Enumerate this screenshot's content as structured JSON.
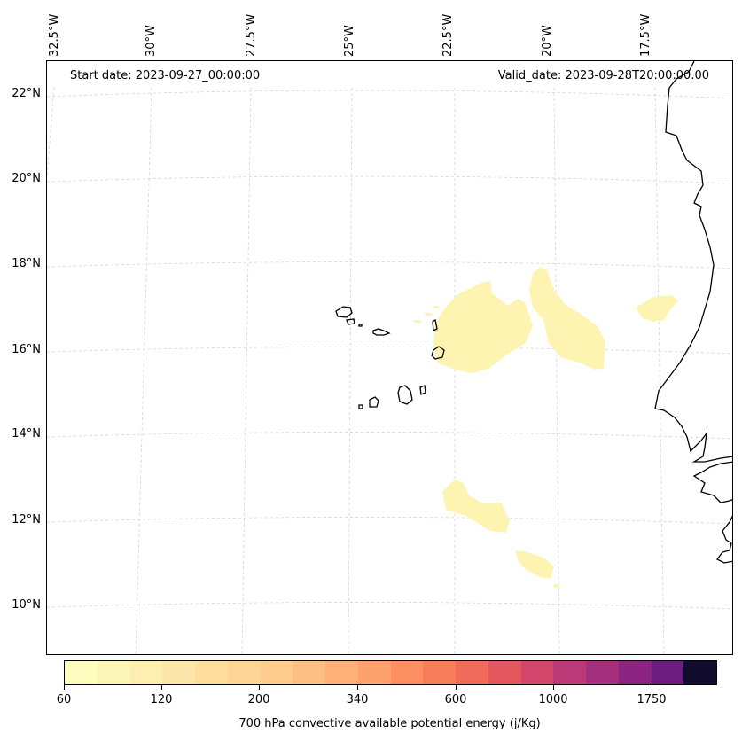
{
  "map": {
    "start_date": "Start date: 2023-09-27_00:00:00",
    "valid_date": "Valid_date: 2023-09-28T20:00:00.00",
    "lon_labels": [
      "32.5°W",
      "30°W",
      "27.5°W",
      "25°W",
      "22.5°W",
      "20°W",
      "17.5°W"
    ],
    "lat_labels": [
      "22°N",
      "20°N",
      "18°N",
      "16°N",
      "14°N",
      "12°N",
      "10°N"
    ],
    "gridlines": true,
    "coastline_color": "#000000",
    "gridline_color": "#cccccc"
  },
  "colorbar": {
    "label": "700 hPa convective available potential energy (j/Kg)",
    "ticks": [
      "60",
      "120",
      "200",
      "340",
      "600",
      "1000",
      "1750"
    ],
    "colors": [
      "#fcfdbf",
      "#fcf5b8",
      "#fdeeb1",
      "#fde6a9",
      "#fdde9f",
      "#fed597",
      "#fecc8f",
      "#febf84",
      "#feb078",
      "#fea26d",
      "#fc9062",
      "#f87d5a",
      "#f06b5a",
      "#e4575f",
      "#d2466b",
      "#bc3978",
      "#a42f7f",
      "#8a2581",
      "#6c1d80",
      "#110c2e"
    ]
  }
}
